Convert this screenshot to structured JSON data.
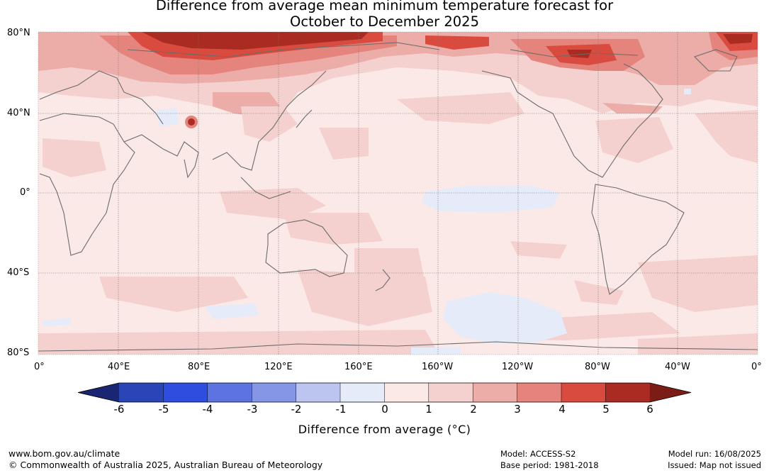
{
  "title": {
    "line1": "Difference from average mean minimum temperature forecast for",
    "line2": "October to December 2025"
  },
  "map": {
    "lat_labels": [
      "80°N",
      "40°N",
      "0°",
      "40°S",
      "80°S"
    ],
    "lon_labels": [
      "0°",
      "40°E",
      "80°E",
      "120°E",
      "160°E",
      "160°W",
      "120°W",
      "80°W",
      "40°W",
      "0°"
    ]
  },
  "colorbar": {
    "ticks": [
      "-6",
      "-5",
      "-4",
      "-3",
      "-2",
      "-1",
      "0",
      "1",
      "2",
      "3",
      "4",
      "5",
      "6"
    ],
    "colors": [
      "#26348f",
      "#2a45b5",
      "#2f4ee0",
      "#5d73e0",
      "#8596e6",
      "#bcc5ef",
      "#e6ebfa",
      "#fbe9e7",
      "#f4d1ce",
      "#ecaca7",
      "#e5847c",
      "#d94b3f",
      "#a92b22"
    ],
    "under_color": "#1b2672",
    "over_color": "#7b1d16",
    "label": "Difference from average (°C)"
  },
  "footer": {
    "website": "www.bom.gov.au/climate",
    "copyright": "© Commonwealth of Australia 2025, Australian Bureau of Meteorology",
    "model": "Model: ACCESS-S2",
    "base_period": "Base period: 1981-2018",
    "model_run": "Model run: 16/08/2025",
    "issued": "Issued: Map not issued"
  }
}
